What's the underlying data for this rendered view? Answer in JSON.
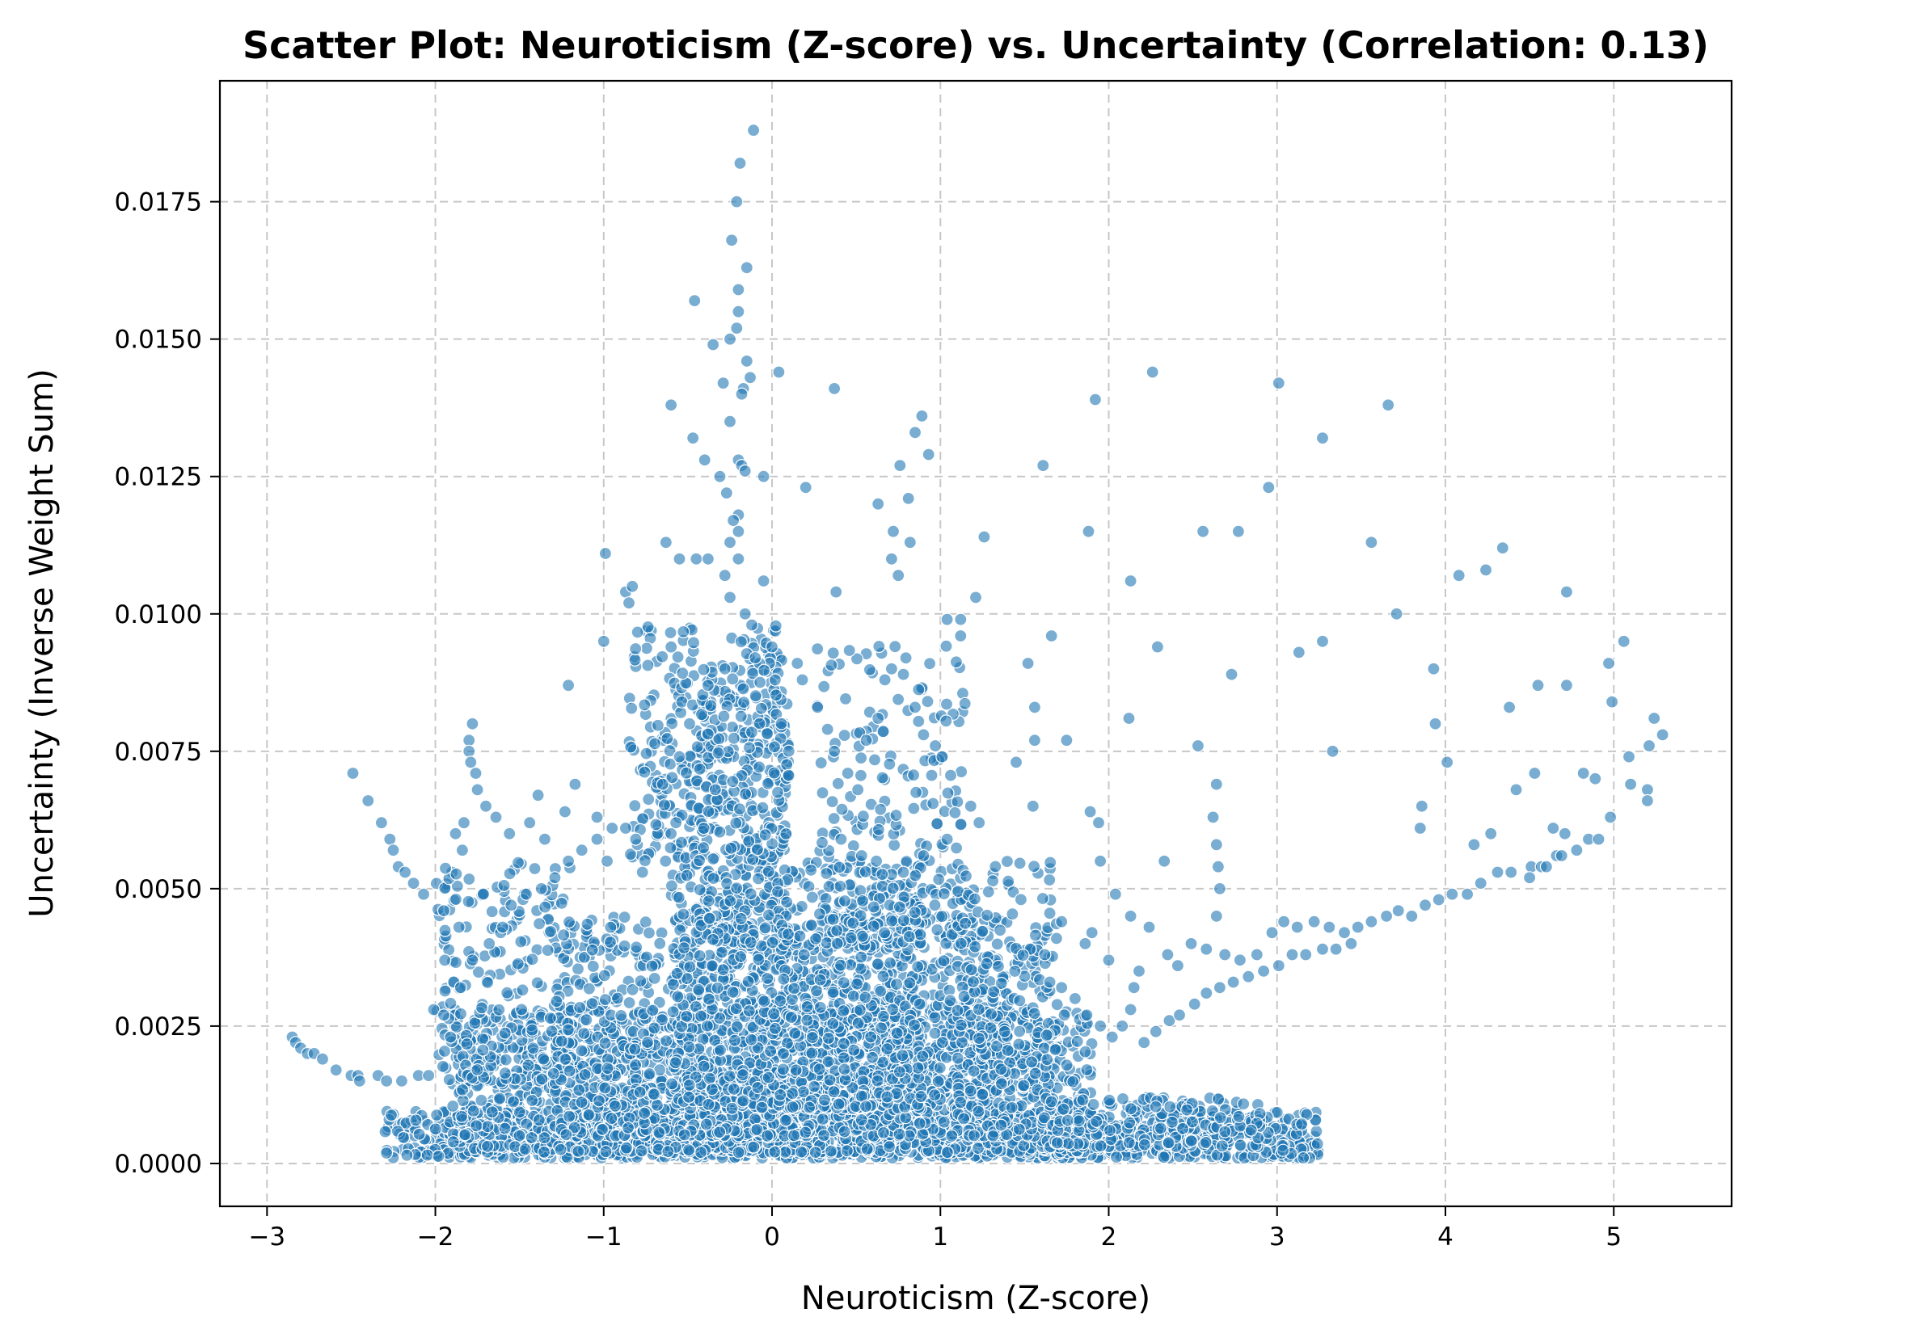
{
  "chart_data": {
    "type": "scatter",
    "title": "Scatter Plot: Neuroticism (Z-score) vs. Uncertainty (Correlation: 0.13)",
    "xlabel": "Neuroticism (Z-score)",
    "ylabel": "Uncertainty (Inverse Weight Sum)",
    "xlim": [
      -3.28,
      5.7
    ],
    "ylim": [
      -0.00078,
      0.0197
    ],
    "xticks": [
      -3,
      -2,
      -1,
      0,
      1,
      2,
      3,
      4,
      5
    ],
    "xtick_labels": [
      "−3",
      "−2",
      "−1",
      "0",
      "1",
      "2",
      "3",
      "4",
      "5"
    ],
    "yticks": [
      0.0,
      0.0025,
      0.005,
      0.0075,
      0.01,
      0.0125,
      0.015,
      0.0175
    ],
    "ytick_labels": [
      "0.0000",
      "0.0025",
      "0.0050",
      "0.0075",
      "0.0100",
      "0.0125",
      "0.0150",
      "0.0175"
    ],
    "grid": true,
    "marker_color": "#1f77b4",
    "marker_alpha": 0.6,
    "points": [
      [
        -0.11,
        0.0188
      ],
      [
        -0.19,
        0.0182
      ],
      [
        -0.21,
        0.0175
      ],
      [
        -0.15,
        0.0163
      ],
      [
        -0.24,
        0.0168
      ],
      [
        -0.2,
        0.0159
      ],
      [
        -0.2,
        0.0155
      ],
      [
        -0.46,
        0.0157
      ],
      [
        -0.21,
        0.0152
      ],
      [
        -0.25,
        0.015
      ],
      [
        -0.35,
        0.0149
      ],
      [
        -0.15,
        0.0146
      ],
      [
        -0.13,
        0.0143
      ],
      [
        -0.17,
        0.0141
      ],
      [
        -0.18,
        0.014
      ],
      [
        0.04,
        0.0144
      ],
      [
        0.37,
        0.0141
      ],
      [
        -0.29,
        0.0142
      ],
      [
        -0.6,
        0.0138
      ],
      [
        -0.25,
        0.0135
      ],
      [
        -0.47,
        0.0132
      ],
      [
        -0.2,
        0.0128
      ],
      [
        -0.18,
        0.0127
      ],
      [
        -0.16,
        0.0126
      ],
      [
        -0.4,
        0.0128
      ],
      [
        -0.31,
        0.0125
      ],
      [
        -0.05,
        0.0125
      ],
      [
        0.2,
        0.0123
      ],
      [
        -0.27,
        0.0122
      ],
      [
        -0.2,
        0.0118
      ],
      [
        -0.2,
        0.0115
      ],
      [
        -0.23,
        0.0117
      ],
      [
        -0.25,
        0.0113
      ],
      [
        -0.45,
        0.011
      ],
      [
        -0.55,
        0.011
      ],
      [
        -0.38,
        0.011
      ],
      [
        -0.63,
        0.0113
      ],
      [
        -0.28,
        0.0107
      ],
      [
        -0.2,
        0.011
      ],
      [
        -0.05,
        0.0106
      ],
      [
        -0.25,
        0.0103
      ],
      [
        -0.16,
        0.01
      ],
      [
        0.38,
        0.0104
      ],
      [
        -0.99,
        0.0111
      ],
      [
        -1.0,
        0.0095
      ],
      [
        -0.87,
        0.0104
      ],
      [
        -0.83,
        0.0105
      ],
      [
        -0.85,
        0.0102
      ],
      [
        0.89,
        0.0136
      ],
      [
        0.85,
        0.0133
      ],
      [
        0.93,
        0.0129
      ],
      [
        0.76,
        0.0127
      ],
      [
        0.81,
        0.0121
      ],
      [
        0.63,
        0.012
      ],
      [
        0.72,
        0.0115
      ],
      [
        0.82,
        0.0113
      ],
      [
        0.71,
        0.011
      ],
      [
        0.75,
        0.0107
      ],
      [
        1.26,
        0.0114
      ],
      [
        1.21,
        0.0103
      ],
      [
        1.04,
        0.0099
      ],
      [
        1.12,
        0.0099
      ],
      [
        1.12,
        0.0096
      ],
      [
        1.52,
        0.0091
      ],
      [
        1.66,
        0.0096
      ],
      [
        1.56,
        0.0083
      ],
      [
        1.61,
        0.0127
      ],
      [
        1.92,
        0.0139
      ],
      [
        1.88,
        0.0115
      ],
      [
        2.26,
        0.0144
      ],
      [
        2.13,
        0.0106
      ],
      [
        2.29,
        0.0094
      ],
      [
        2.56,
        0.0115
      ],
      [
        2.77,
        0.0115
      ],
      [
        2.73,
        0.0089
      ],
      [
        2.95,
        0.0123
      ],
      [
        3.01,
        0.0142
      ],
      [
        3.27,
        0.0132
      ],
      [
        3.27,
        0.0095
      ],
      [
        3.13,
        0.0093
      ],
      [
        3.33,
        0.0075
      ],
      [
        3.56,
        0.0113
      ],
      [
        3.66,
        0.0138
      ],
      [
        3.71,
        0.01
      ],
      [
        3.93,
        0.009
      ],
      [
        3.94,
        0.008
      ],
      [
        4.08,
        0.0107
      ],
      [
        4.24,
        0.0108
      ],
      [
        4.34,
        0.0112
      ],
      [
        4.72,
        0.0104
      ],
      [
        5.06,
        0.0095
      ],
      [
        4.97,
        0.0091
      ],
      [
        4.55,
        0.0087
      ],
      [
        4.72,
        0.0087
      ],
      [
        4.38,
        0.0083
      ],
      [
        4.99,
        0.0084
      ],
      [
        5.24,
        0.0081
      ],
      [
        5.29,
        0.0078
      ],
      [
        4.01,
        0.0073
      ],
      [
        4.53,
        0.0071
      ],
      [
        4.82,
        0.0071
      ],
      [
        4.89,
        0.007
      ],
      [
        5.09,
        0.0074
      ],
      [
        5.21,
        0.0076
      ],
      [
        5.1,
        0.0069
      ],
      [
        5.2,
        0.0068
      ],
      [
        5.2,
        0.0066
      ],
      [
        4.42,
        0.0068
      ],
      [
        3.86,
        0.0065
      ],
      [
        3.85,
        0.0061
      ],
      [
        4.64,
        0.0061
      ],
      [
        4.71,
        0.006
      ],
      [
        4.85,
        0.0059
      ],
      [
        4.91,
        0.0059
      ],
      [
        4.98,
        0.0063
      ],
      [
        4.27,
        0.006
      ],
      [
        4.17,
        0.0058
      ],
      [
        4.51,
        0.0054
      ],
      [
        4.57,
        0.0054
      ],
      [
        4.66,
        0.0056
      ],
      [
        2.53,
        0.0076
      ],
      [
        2.64,
        0.0069
      ],
      [
        2.62,
        0.0063
      ],
      [
        2.64,
        0.0058
      ],
      [
        2.65,
        0.0054
      ],
      [
        2.66,
        0.005
      ],
      [
        2.64,
        0.0045
      ],
      [
        2.33,
        0.0055
      ],
      [
        2.12,
        0.0081
      ],
      [
        1.94,
        0.0062
      ],
      [
        1.89,
        0.0064
      ],
      [
        1.75,
        0.0077
      ],
      [
        1.56,
        0.0077
      ],
      [
        1.45,
        0.0073
      ],
      [
        1.55,
        0.0065
      ],
      [
        1.95,
        0.0055
      ],
      [
        -2.49,
        0.0071
      ],
      [
        -2.4,
        0.0066
      ],
      [
        -2.32,
        0.0062
      ],
      [
        -2.27,
        0.0059
      ],
      [
        -2.25,
        0.0057
      ],
      [
        -2.22,
        0.0054
      ],
      [
        -2.18,
        0.0053
      ],
      [
        -2.13,
        0.0051
      ],
      [
        -2.07,
        0.0049
      ],
      [
        -1.95,
        0.0046
      ],
      [
        -1.86,
        0.0043
      ],
      [
        -1.78,
        0.008
      ],
      [
        -1.8,
        0.0077
      ],
      [
        -1.8,
        0.0075
      ],
      [
        -1.79,
        0.0073
      ],
      [
        -1.76,
        0.0071
      ],
      [
        -1.75,
        0.0068
      ],
      [
        -1.7,
        0.0065
      ],
      [
        -1.83,
        0.0062
      ],
      [
        -1.88,
        0.006
      ],
      [
        -1.84,
        0.0057
      ],
      [
        -1.64,
        0.0063
      ],
      [
        -1.56,
        0.006
      ],
      [
        -1.44,
        0.0062
      ],
      [
        -1.39,
        0.0067
      ],
      [
        -1.35,
        0.0059
      ],
      [
        -1.23,
        0.0064
      ],
      [
        -1.17,
        0.0069
      ],
      [
        -1.21,
        0.0087
      ],
      [
        -1.04,
        0.0063
      ],
      [
        -0.98,
        0.0055
      ],
      [
        -0.8,
        0.0058
      ],
      [
        -0.77,
        0.0053
      ],
      [
        -0.6,
        0.006
      ],
      [
        -0.65,
        0.0069
      ],
      [
        -0.55,
        0.0074
      ],
      [
        -0.49,
        0.008
      ],
      [
        -0.38,
        0.0087
      ],
      [
        -0.28,
        0.009
      ],
      [
        -0.1,
        0.0092
      ],
      [
        0.0,
        0.0094
      ],
      [
        0.15,
        0.0091
      ],
      [
        0.18,
        0.0088
      ],
      [
        0.27,
        0.0083
      ],
      [
        0.33,
        0.0079
      ],
      [
        0.37,
        0.0075
      ],
      [
        0.45,
        0.0071
      ],
      [
        0.51,
        0.0068
      ],
      [
        0.56,
        0.0077
      ],
      [
        0.63,
        0.0081
      ],
      [
        0.67,
        0.0088
      ],
      [
        0.71,
        0.009
      ],
      [
        0.78,
        0.0089
      ],
      [
        0.85,
        0.0083
      ],
      [
        0.9,
        0.0078
      ],
      [
        0.97,
        0.0076
      ],
      [
        1.01,
        0.0074
      ],
      [
        1.18,
        0.0065
      ],
      [
        1.23,
        0.0062
      ],
      [
        1.04,
        0.0059
      ],
      [
        0.9,
        0.0056
      ],
      [
        0.78,
        0.0053
      ],
      [
        0.62,
        0.0055
      ],
      [
        0.41,
        0.0059
      ],
      [
        -2.85,
        0.0023
      ],
      [
        -2.83,
        0.0022
      ],
      [
        -2.8,
        0.0021
      ],
      [
        -2.76,
        0.002
      ],
      [
        -2.72,
        0.002
      ],
      [
        -2.67,
        0.0019
      ],
      [
        -2.59,
        0.0017
      ],
      [
        -2.5,
        0.0016
      ],
      [
        -2.46,
        0.0016
      ],
      [
        -2.45,
        0.0015
      ],
      [
        -2.34,
        0.0016
      ],
      [
        -2.29,
        0.0015
      ],
      [
        -2.2,
        0.0015
      ],
      [
        -2.1,
        0.0016
      ],
      [
        -2.04,
        0.0016
      ],
      [
        -2.01,
        0.0028
      ],
      [
        -1.95,
        0.0027
      ],
      [
        -1.91,
        0.0023
      ],
      [
        -1.85,
        0.0032
      ],
      [
        -1.78,
        0.0037
      ],
      [
        -1.68,
        0.004
      ],
      [
        -1.6,
        0.0043
      ],
      [
        -1.55,
        0.0047
      ],
      [
        -1.46,
        0.0049
      ],
      [
        -1.37,
        0.005
      ],
      [
        -1.29,
        0.0052
      ],
      [
        -1.21,
        0.0055
      ],
      [
        -1.13,
        0.0057
      ],
      [
        -1.04,
        0.0059
      ],
      [
        -0.95,
        0.0061
      ],
      [
        -0.87,
        0.0061
      ],
      [
        -0.81,
        0.0059
      ],
      [
        2.04,
        0.0049
      ],
      [
        2.13,
        0.0045
      ],
      [
        2.24,
        0.0043
      ],
      [
        2.35,
        0.0038
      ],
      [
        2.41,
        0.0036
      ],
      [
        2.49,
        0.004
      ],
      [
        2.58,
        0.0039
      ],
      [
        2.69,
        0.0038
      ],
      [
        2.78,
        0.0037
      ],
      [
        2.88,
        0.0038
      ],
      [
        2.97,
        0.0042
      ],
      [
        3.04,
        0.0044
      ],
      [
        3.12,
        0.0043
      ],
      [
        3.22,
        0.0044
      ],
      [
        3.31,
        0.0043
      ],
      [
        3.4,
        0.0042
      ],
      [
        3.48,
        0.0043
      ],
      [
        3.56,
        0.0044
      ],
      [
        3.65,
        0.0045
      ],
      [
        3.72,
        0.0046
      ],
      [
        3.8,
        0.0045
      ],
      [
        3.88,
        0.0047
      ],
      [
        3.96,
        0.0048
      ],
      [
        4.04,
        0.0049
      ],
      [
        4.13,
        0.0049
      ],
      [
        4.21,
        0.0051
      ],
      [
        4.31,
        0.0053
      ],
      [
        4.39,
        0.0053
      ],
      [
        4.5,
        0.0052
      ],
      [
        4.6,
        0.0054
      ],
      [
        4.69,
        0.0056
      ],
      [
        4.78,
        0.0057
      ],
      [
        2.21,
        0.0022
      ],
      [
        2.28,
        0.0024
      ],
      [
        2.36,
        0.0026
      ],
      [
        2.42,
        0.0027
      ],
      [
        2.51,
        0.0029
      ],
      [
        2.58,
        0.0031
      ],
      [
        2.66,
        0.0032
      ],
      [
        2.74,
        0.0033
      ],
      [
        2.83,
        0.0034
      ],
      [
        2.92,
        0.0035
      ],
      [
        3.01,
        0.0036
      ],
      [
        3.09,
        0.0038
      ],
      [
        3.17,
        0.0038
      ],
      [
        3.27,
        0.0039
      ],
      [
        3.35,
        0.0039
      ],
      [
        3.44,
        0.004
      ],
      [
        1.65,
        0.0033
      ],
      [
        1.72,
        0.0032
      ],
      [
        1.8,
        0.003
      ],
      [
        1.87,
        0.0027
      ],
      [
        1.95,
        0.0025
      ],
      [
        2.02,
        0.0023
      ],
      [
        2.08,
        0.0025
      ],
      [
        2.13,
        0.0028
      ],
      [
        2.15,
        0.0032
      ],
      [
        2.18,
        0.0035
      ],
      [
        1.86,
        0.004
      ],
      [
        1.9,
        0.0042
      ],
      [
        2.0,
        0.0037
      ],
      [
        1.72,
        0.0044
      ],
      [
        1.62,
        0.0038
      ]
    ],
    "clouds": [
      {
        "type": "dense",
        "xmin": -2.3,
        "xmax": 3.25,
        "ymin": 0.0001,
        "ymax": 0.00095,
        "n": 1300
      },
      {
        "type": "dense",
        "xmin": -1.9,
        "xmax": 1.9,
        "ymin": 0.0002,
        "ymax": 0.0028,
        "n": 1600
      },
      {
        "type": "dense",
        "xmin": -1.3,
        "xmax": 1.4,
        "ymin": 0.0005,
        "ymax": 0.0045,
        "n": 1400
      },
      {
        "type": "dense",
        "xmin": -0.6,
        "xmax": 0.9,
        "ymin": 0.001,
        "ymax": 0.0055,
        "n": 800
      },
      {
        "type": "dense",
        "xmin": -0.85,
        "xmax": 0.1,
        "ymin": 0.0055,
        "ymax": 0.0098,
        "n": 320
      },
      {
        "type": "dense",
        "xmin": -0.45,
        "xmax": 0.1,
        "ymin": 0.004,
        "ymax": 0.009,
        "n": 260
      },
      {
        "type": "dense",
        "xmin": 0.25,
        "xmax": 1.15,
        "ymin": 0.004,
        "ymax": 0.0095,
        "n": 220
      },
      {
        "type": "dense",
        "xmin": 1.1,
        "xmax": 1.7,
        "ymin": 0.0005,
        "ymax": 0.0055,
        "n": 260
      },
      {
        "type": "dense",
        "xmin": -2.0,
        "xmax": -1.2,
        "ymin": 0.0015,
        "ymax": 0.0055,
        "n": 200
      },
      {
        "type": "dense",
        "xmin": 1.6,
        "xmax": 2.9,
        "ymin": 0.0003,
        "ymax": 0.0012,
        "n": 200
      }
    ]
  }
}
